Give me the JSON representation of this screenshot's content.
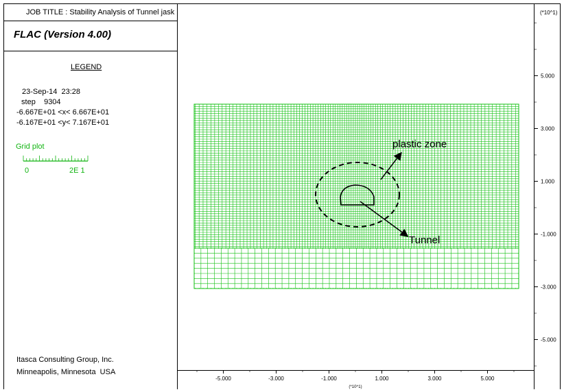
{
  "header": {
    "job_title": "JOB TITLE : Stability Analysis of Tunnel jask",
    "scale_note": "(*10^1)"
  },
  "panel": {
    "program": "FLAC (Version 4.00)",
    "legend_heading": "LEGEND",
    "date": "23-Sep-14  23:28",
    "step": " step    9304",
    "x_range": "-6.667E+01 <x< 6.667E+01",
    "y_range": "-6.167E+01 <y< 7.167E+01",
    "grid_plot_label": "Grid plot",
    "scale_min": "0",
    "scale_max": "2E 1",
    "company": "Itasca Consulting Group, Inc.",
    "location": "Minneapolis, Minnesota  USA"
  },
  "plot": {
    "grid_color": "#10c010",
    "annotation_plastic": "plastic zone",
    "annotation_tunnel": "Tunnel",
    "x_axis_note": "(*10^1)"
  },
  "chart_data": {
    "type": "mesh",
    "x_ticks": [
      "-5.000",
      "-3.000",
      "-1.000",
      "1.000",
      "3.000",
      "5.000"
    ],
    "x_tick_values": [
      -5,
      -3,
      -1,
      1,
      3,
      5
    ],
    "y_ticks": [
      "5.000",
      "3.000",
      "1.000",
      "-1.000",
      "-3.000",
      "-5.000"
    ],
    "y_tick_values": [
      5,
      3,
      1,
      -1,
      -3,
      -5
    ],
    "x_axis_note": "(*10^1)",
    "y_axis_note": "(*10^1)",
    "xlim": [
      -6.667,
      6.667
    ],
    "ylim": [
      -6.167,
      7.167
    ],
    "grid_extent": {
      "x": [
        -6.0,
        6.0
      ],
      "y": [
        -3.0,
        4.0
      ]
    },
    "fine_region_y_from": -1.5,
    "plastic_zone_center": [
      -0.1,
      0.6
    ],
    "tunnel_center": [
      -0.3,
      0.8
    ]
  }
}
